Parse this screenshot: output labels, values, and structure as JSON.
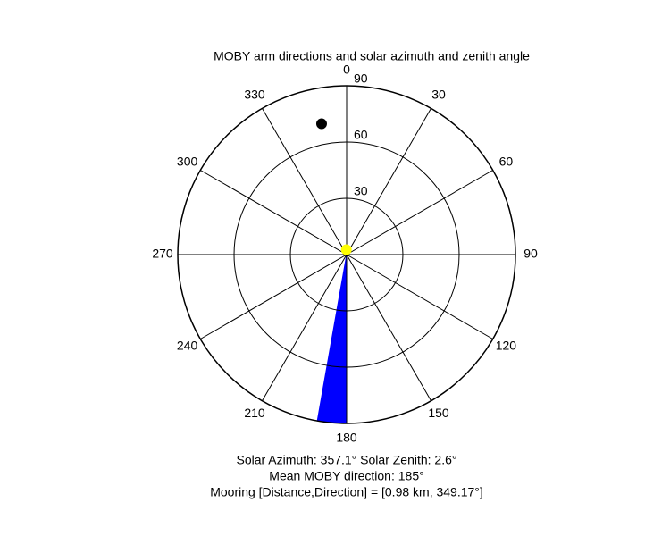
{
  "chart_data": {
    "type": "polar",
    "title": "MOBY arm directions and solar azimuth and zenith angle",
    "thetaticks": [
      0,
      30,
      60,
      90,
      120,
      150,
      180,
      210,
      240,
      270,
      300,
      330
    ],
    "rlim": [
      0,
      90
    ],
    "rticks": [
      30,
      60,
      90
    ],
    "sector": {
      "theta": [
        180,
        190
      ],
      "color": "#0000ff"
    },
    "points": [
      {
        "theta": 349.17,
        "r": 71,
        "color": "#000000"
      },
      {
        "theta": 357.1,
        "r": 2.6,
        "color": "#ffff00"
      }
    ],
    "annotations": [
      "Solar Azimuth: 357.1°   Solar Zenith: 2.6°",
      "Mean MOBY direction: 185°",
      "Mooring [Distance,Direction] = [0.98 km, 349.17°]"
    ]
  }
}
